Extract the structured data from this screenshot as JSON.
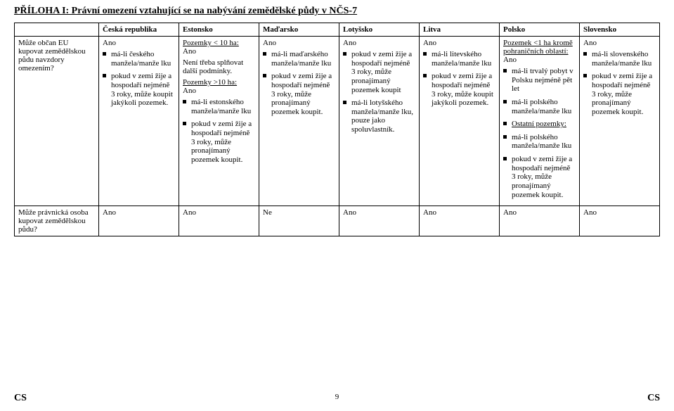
{
  "title": "PŘÍLOHA I: Právní omezení vztahující se na nabývání zemědělské půdy v NČS-7",
  "columns": [
    "Česká republika",
    "Estonsko",
    "Maďarsko",
    "Lotyšsko",
    "Litva",
    "Polsko",
    "Slovensko"
  ],
  "rows": [
    {
      "question": "Může občan EU kupovat zemědělskou půdu navzdory omezením?",
      "cells": {
        "cr": {
          "head": "Ano",
          "bullets": [
            "má-li českého manžela/manže lku",
            "pokud v zemi žije a hospodaří nejméně 3 roky, může koupit jakýkoli pozemek."
          ]
        },
        "es": {
          "h1": "Pozemky < 10 ha:",
          "a1": "Ano",
          "txt1": "Není třeba splňovat další podmínky.",
          "h2": "Pozemky >10 ha:",
          "a2": "Ano",
          "bullets": [
            "má-li estonského manžela/manže lku",
            "pokud v zemi žije a hospodaří nejméně 3 roky, může pronajímaný pozemek koupit."
          ]
        },
        "hu": {
          "head": "Ano",
          "bullets": [
            "má-li maďarského manžela/manže lku",
            "pokud v zemi žije a hospodaří nejméně 3 roky, může pronajímaný pozemek koupit."
          ]
        },
        "lv": {
          "head": "Ano",
          "bullets": [
            "pokud v zemi žije a hospodaří nejméně 3 roky, může pronajímaný pozemek koupit",
            "má-li lotyšského manžela/manže lku, pouze jako spoluvlastník."
          ]
        },
        "lt": {
          "head": "Ano",
          "bullets": [
            "má-li litevského manžela/manže lku",
            "pokud v zemi žije a hospodaří nejméně 3 roky, může koupit jakýkoli pozemek."
          ]
        },
        "pl": {
          "h1": "Pozemek <1 ha kromě pohraničních oblastí:",
          "a1": "Ano",
          "b1": [
            "má-li trvalý pobyt v Polsku nejméně pět let",
            "má-li polského manžela/manže lku"
          ],
          "h2": "Ostatní pozemky:",
          "b2": [
            "má-li polského manžela/manže lku",
            "pokud v zemi žije a hospodaří nejméně 3 roky, může pronajímaný pozemek koupit."
          ]
        },
        "sk": {
          "head": "Ano",
          "bullets": [
            "má-li slovenského manžela/manže lku",
            "pokud v zemi žije a hospodaří nejméně 3 roky, může pronajímaný pozemek koupit."
          ]
        }
      }
    },
    {
      "question": "Může právnická osoba kupovat zemědělskou půdu?",
      "answers": [
        "Ano",
        "Ano",
        "Ne",
        "Ano",
        "Ano",
        "Ano",
        "Ano"
      ]
    }
  ],
  "footer": {
    "left": "CS",
    "page": "9",
    "right": "CS"
  }
}
